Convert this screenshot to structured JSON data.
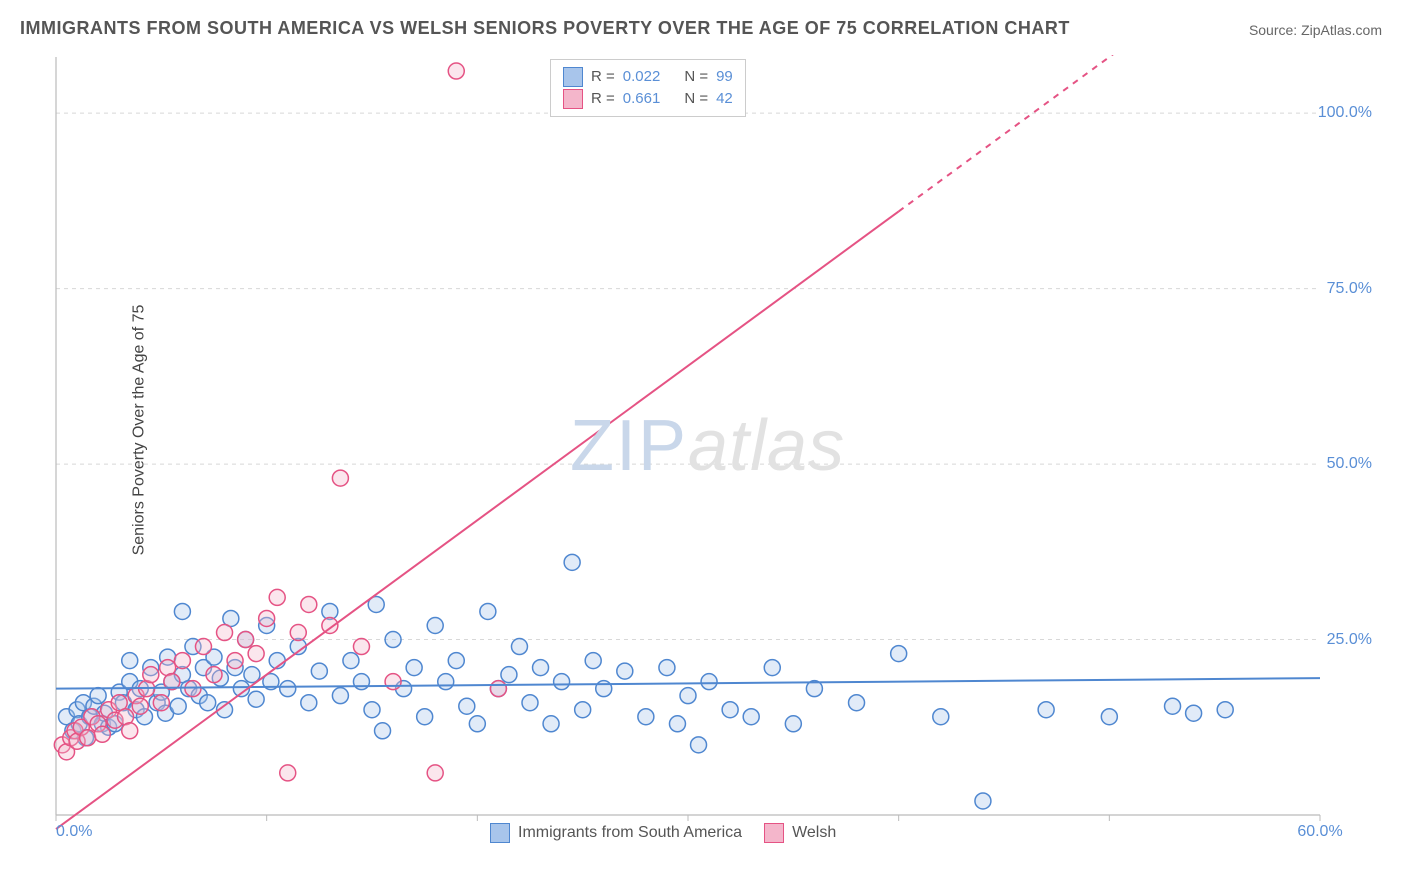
{
  "title": "IMMIGRANTS FROM SOUTH AMERICA VS WELSH SENIORS POVERTY OVER THE AGE OF 75 CORRELATION CHART",
  "source_label": "Source: ",
  "source_name": "ZipAtlas.com",
  "y_axis_title": "Seniors Poverty Over the Age of 75",
  "watermark": {
    "left": "ZIP",
    "right": "atlas"
  },
  "chart": {
    "type": "scatter",
    "background_color": "#ffffff",
    "grid_color": "#d8d8d8",
    "axis_color": "#bbbbbb",
    "tick_color": "#bbbbbb",
    "xlim": [
      0,
      60
    ],
    "ylim": [
      0,
      108
    ],
    "xticks": [
      0,
      10,
      20,
      30,
      40,
      50,
      60
    ],
    "xtick_labels": [
      "0.0%",
      "",
      "",
      "",
      "",
      "",
      "60.0%"
    ],
    "yticks": [
      25,
      50,
      75,
      100
    ],
    "ytick_labels": [
      "25.0%",
      "50.0%",
      "75.0%",
      "100.0%"
    ],
    "marker_radius": 8,
    "marker_stroke_width": 1.5,
    "marker_fill_opacity": 0.35,
    "trend_line_width": 2,
    "series": [
      {
        "name": "Immigrants from South America",
        "stroke": "#4f87d0",
        "fill": "#a8c5eb",
        "r": 0.022,
        "n": 99,
        "trend": {
          "y_at_x0": 18.0,
          "y_at_xmax": 19.5,
          "dash_from_x": null
        },
        "points": [
          [
            0.5,
            14
          ],
          [
            0.8,
            12
          ],
          [
            1.0,
            15
          ],
          [
            1.1,
            13
          ],
          [
            1.3,
            16
          ],
          [
            1.4,
            11
          ],
          [
            1.6,
            14
          ],
          [
            1.8,
            15.5
          ],
          [
            2.0,
            17
          ],
          [
            2.2,
            13
          ],
          [
            2.3,
            14.5
          ],
          [
            2.5,
            12.5
          ],
          [
            2.8,
            13
          ],
          [
            3.0,
            17.5
          ],
          [
            3.2,
            16
          ],
          [
            3.5,
            19
          ],
          [
            3.5,
            22
          ],
          [
            3.8,
            15
          ],
          [
            4.0,
            18
          ],
          [
            4.2,
            14
          ],
          [
            4.5,
            21
          ],
          [
            4.8,
            16
          ],
          [
            5.0,
            17.5
          ],
          [
            5.2,
            14.5
          ],
          [
            5.3,
            22.5
          ],
          [
            5.5,
            19
          ],
          [
            5.8,
            15.5
          ],
          [
            6.0,
            20
          ],
          [
            6.0,
            29
          ],
          [
            6.3,
            18
          ],
          [
            6.5,
            24
          ],
          [
            6.8,
            17
          ],
          [
            7.0,
            21
          ],
          [
            7.2,
            16
          ],
          [
            7.5,
            22.5
          ],
          [
            7.8,
            19.5
          ],
          [
            8.0,
            15
          ],
          [
            8.3,
            28
          ],
          [
            8.5,
            21
          ],
          [
            8.8,
            18
          ],
          [
            9.0,
            25
          ],
          [
            9.3,
            20
          ],
          [
            9.5,
            16.5
          ],
          [
            10.0,
            27
          ],
          [
            10.2,
            19
          ],
          [
            10.5,
            22
          ],
          [
            11.0,
            18
          ],
          [
            11.5,
            24
          ],
          [
            12.0,
            16
          ],
          [
            12.5,
            20.5
          ],
          [
            13.0,
            29
          ],
          [
            13.5,
            17
          ],
          [
            14.0,
            22
          ],
          [
            14.5,
            19
          ],
          [
            15.0,
            15
          ],
          [
            15.2,
            30
          ],
          [
            15.5,
            12
          ],
          [
            16.0,
            25
          ],
          [
            16.5,
            18
          ],
          [
            17.0,
            21
          ],
          [
            17.5,
            14
          ],
          [
            18.0,
            27
          ],
          [
            18.5,
            19
          ],
          [
            19.0,
            22
          ],
          [
            19.5,
            15.5
          ],
          [
            20.0,
            13
          ],
          [
            20.5,
            29
          ],
          [
            21.0,
            18
          ],
          [
            21.5,
            20
          ],
          [
            22.0,
            24
          ],
          [
            22.5,
            16
          ],
          [
            23.0,
            21
          ],
          [
            23.5,
            13
          ],
          [
            24.0,
            19
          ],
          [
            24.5,
            36
          ],
          [
            25.0,
            15
          ],
          [
            25.5,
            22
          ],
          [
            26.0,
            18
          ],
          [
            27.0,
            20.5
          ],
          [
            28.0,
            14
          ],
          [
            29.0,
            21
          ],
          [
            29.5,
            13
          ],
          [
            30.0,
            17
          ],
          [
            30.5,
            10
          ],
          [
            31.0,
            19
          ],
          [
            32.0,
            15
          ],
          [
            33.0,
            14
          ],
          [
            34.0,
            21
          ],
          [
            35.0,
            13
          ],
          [
            36.0,
            18
          ],
          [
            38.0,
            16
          ],
          [
            40.0,
            23
          ],
          [
            42.0,
            14
          ],
          [
            44.0,
            2
          ],
          [
            47.0,
            15
          ],
          [
            50.0,
            14
          ],
          [
            53.0,
            15.5
          ],
          [
            54.0,
            14.5
          ],
          [
            55.5,
            15
          ]
        ]
      },
      {
        "name": "Welsh",
        "stroke": "#e55384",
        "fill": "#f4b6cb",
        "r": 0.661,
        "n": 42,
        "trend": {
          "y_at_x0": -2,
          "y_at_xmax": 130,
          "dash_from_x": 40
        },
        "points": [
          [
            0.3,
            10
          ],
          [
            0.5,
            9
          ],
          [
            0.7,
            11
          ],
          [
            0.9,
            12
          ],
          [
            1.0,
            10.5
          ],
          [
            1.2,
            12.5
          ],
          [
            1.5,
            11
          ],
          [
            1.7,
            14
          ],
          [
            2.0,
            13
          ],
          [
            2.2,
            11.5
          ],
          [
            2.5,
            15
          ],
          [
            2.8,
            13.5
          ],
          [
            3.0,
            16
          ],
          [
            3.3,
            14
          ],
          [
            3.5,
            12
          ],
          [
            3.8,
            17
          ],
          [
            4.0,
            15.5
          ],
          [
            4.3,
            18
          ],
          [
            4.5,
            20
          ],
          [
            5.0,
            16
          ],
          [
            5.3,
            21
          ],
          [
            5.5,
            19
          ],
          [
            6.0,
            22
          ],
          [
            6.5,
            18
          ],
          [
            7.0,
            24
          ],
          [
            7.5,
            20
          ],
          [
            8.0,
            26
          ],
          [
            8.5,
            22
          ],
          [
            9.0,
            25
          ],
          [
            9.5,
            23
          ],
          [
            10.0,
            28
          ],
          [
            10.5,
            31
          ],
          [
            11.0,
            6
          ],
          [
            11.5,
            26
          ],
          [
            12.0,
            30
          ],
          [
            13.0,
            27
          ],
          [
            13.5,
            48
          ],
          [
            14.5,
            24
          ],
          [
            16.0,
            19
          ],
          [
            18.0,
            6
          ],
          [
            19.0,
            106
          ],
          [
            21.0,
            18
          ]
        ]
      }
    ]
  },
  "legend_top": {
    "rows": [
      {
        "swatch_fill": "#a8c5eb",
        "swatch_stroke": "#4f87d0",
        "r_label": "R =",
        "r_value": "0.022",
        "n_label": "N =",
        "n_value": "99"
      },
      {
        "swatch_fill": "#f4b6cb",
        "swatch_stroke": "#e55384",
        "r_label": "R =",
        "r_value": "0.661",
        "n_label": "N =",
        "n_value": "42"
      }
    ]
  },
  "legend_bottom": {
    "items": [
      {
        "swatch_fill": "#a8c5eb",
        "swatch_stroke": "#4f87d0",
        "label": "Immigrants from South America"
      },
      {
        "swatch_fill": "#f4b6cb",
        "swatch_stroke": "#e55384",
        "label": "Welsh"
      }
    ]
  }
}
